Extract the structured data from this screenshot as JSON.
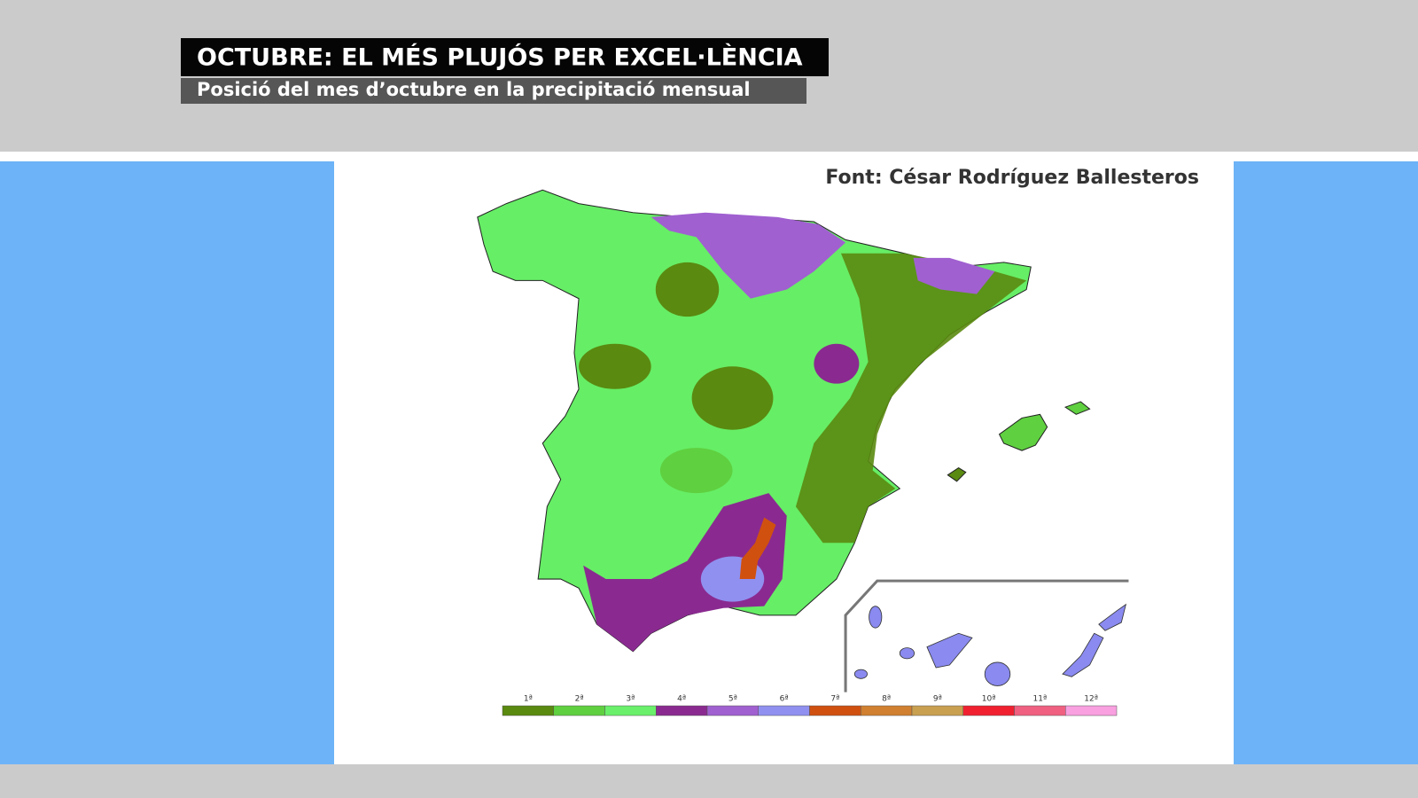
{
  "header": {
    "title": "OCTUBRE: EL MÉS PLUJÓS PER EXCEL·LÈNCIA",
    "subtitle": "Posició del mes d’octubre en la precipitació mensual"
  },
  "source": "Font: César Rodríguez Ballesteros",
  "legend": {
    "items": [
      {
        "label": "1ª",
        "color": "#5a8a10"
      },
      {
        "label": "2ª",
        "color": "#5fd040"
      },
      {
        "label": "3ª",
        "color": "#6af06a"
      },
      {
        "label": "4ª",
        "color": "#8a2a90"
      },
      {
        "label": "5ª",
        "color": "#a060d0"
      },
      {
        "label": "6ª",
        "color": "#9090f0"
      },
      {
        "label": "7ª",
        "color": "#d05010"
      },
      {
        "label": "8ª",
        "color": "#d08030"
      },
      {
        "label": "9ª",
        "color": "#c8a050"
      },
      {
        "label": "10ª",
        "color": "#f02030"
      },
      {
        "label": "11ª",
        "color": "#f06080"
      },
      {
        "label": "12ª",
        "color": "#f8a0e0"
      }
    ]
  }
}
